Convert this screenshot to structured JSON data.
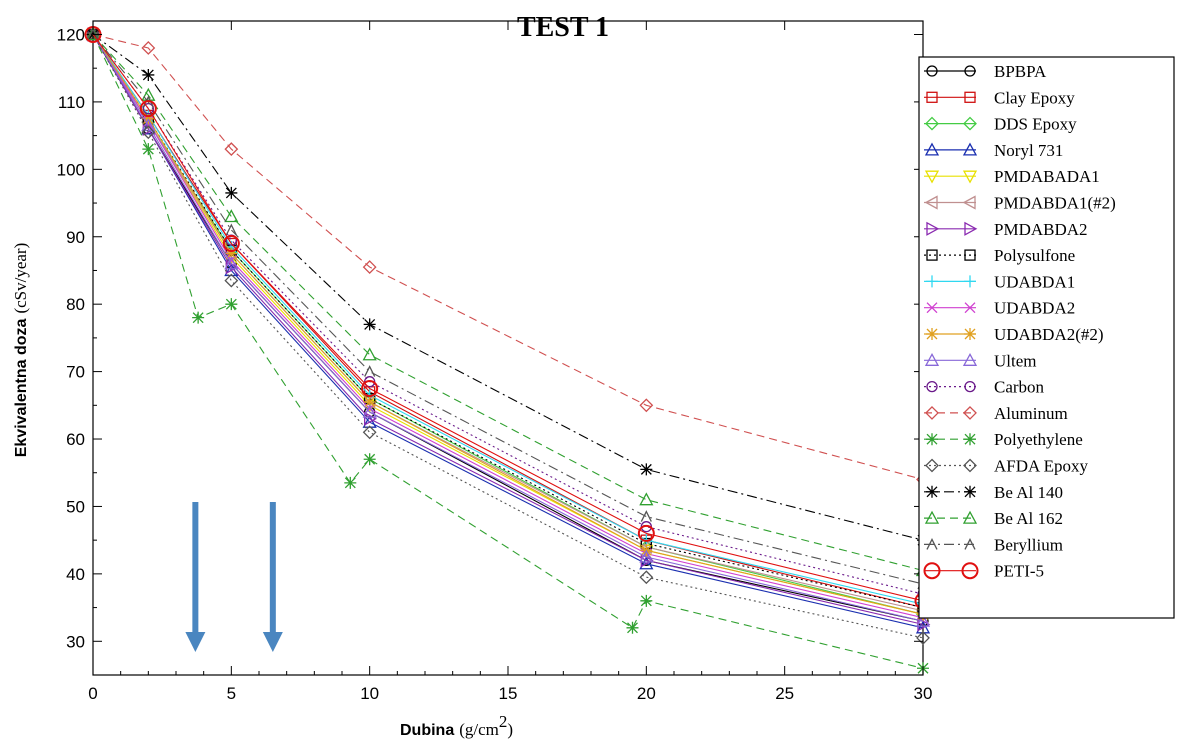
{
  "chart_data": {
    "type": "line",
    "title": "TEST 1",
    "xlabel": "Dubina",
    "xlabel_unit": "(g/cm",
    "xlabel_unit_sup": "2",
    "xlabel_unit_end": ")",
    "ylabel": "Ekvivalentna doza",
    "ylabel_unit": "(cSv/year)",
    "xlim": [
      0,
      30
    ],
    "ylim": [
      25,
      122
    ],
    "xticks": [
      "0",
      "5",
      "10",
      "15",
      "20",
      "25",
      "30"
    ],
    "yticks": [
      "30",
      "40",
      "50",
      "60",
      "70",
      "80",
      "90",
      "100",
      "110",
      "120"
    ],
    "grid": false,
    "legend_position": "right",
    "annotations": [
      {
        "type": "down-arrow",
        "x": 3.7,
        "color": "#4a86c0"
      },
      {
        "type": "down-arrow",
        "x": 6.5,
        "color": "#4a86c0"
      }
    ],
    "series": [
      {
        "name": "BPBPA",
        "color": "#000000",
        "marker": "circle",
        "dash": "solid",
        "x": [
          0,
          2,
          5,
          10,
          20,
          30
        ],
        "y": [
          120,
          106,
          86,
          64,
          42,
          33
        ]
      },
      {
        "name": "Clay Epoxy",
        "color": "#d01010",
        "marker": "square",
        "dash": "solid",
        "x": [
          0,
          2,
          5,
          10,
          20,
          30
        ],
        "y": [
          120,
          108,
          89,
          67,
          45,
          35
        ]
      },
      {
        "name": "DDS Epoxy",
        "color": "#44cc44",
        "marker": "diamond",
        "dash": "solid",
        "x": [
          0,
          2,
          5,
          10,
          20,
          30
        ],
        "y": [
          120,
          107,
          88,
          66,
          44,
          34
        ]
      },
      {
        "name": "Noryl 731",
        "color": "#1a2fb0",
        "marker": "triangle-up",
        "dash": "solid",
        "x": [
          0,
          2,
          5,
          10,
          20,
          30
        ],
        "y": [
          120,
          106,
          85,
          62.5,
          41.5,
          32
        ]
      },
      {
        "name": "PMDABADA1",
        "color": "#e8e000",
        "marker": "triangle-down",
        "dash": "solid",
        "x": [
          0,
          2,
          5,
          10,
          20,
          30
        ],
        "y": [
          120,
          107,
          87,
          65,
          43.5,
          34
        ]
      },
      {
        "name": "PMDABDA1(#2)",
        "color": "#c09090",
        "marker": "triangle-left",
        "dash": "solid",
        "x": [
          0,
          2,
          5,
          10,
          20,
          30
        ],
        "y": [
          120,
          107,
          87.5,
          65.5,
          44,
          34.5
        ]
      },
      {
        "name": "PMDABDA2",
        "color": "#8a2ab0",
        "marker": "triangle-right",
        "dash": "solid",
        "x": [
          0,
          2,
          5,
          10,
          20,
          30
        ],
        "y": [
          120,
          106,
          85.5,
          63,
          42,
          32.5
        ]
      },
      {
        "name": "Polysulfone",
        "color": "#000000",
        "marker": "square",
        "dash": "dotted",
        "x": [
          0,
          2,
          5,
          10,
          20,
          30
        ],
        "y": [
          120,
          107.5,
          88,
          66,
          44.5,
          35
        ]
      },
      {
        "name": "UDABDA1",
        "color": "#30d8f0",
        "marker": "plus",
        "dash": "solid",
        "x": [
          0,
          2,
          5,
          10,
          20,
          30
        ],
        "y": [
          120,
          108,
          88.5,
          66.5,
          45,
          35.5
        ]
      },
      {
        "name": "UDABDA2",
        "color": "#d040d0",
        "marker": "x",
        "dash": "solid",
        "x": [
          0,
          2,
          5,
          10,
          20,
          30
        ],
        "y": [
          120,
          107,
          86.5,
          64.5,
          43,
          33.5
        ]
      },
      {
        "name": "UDABDA2(#2)",
        "color": "#e0a020",
        "marker": "star",
        "dash": "solid",
        "x": [
          0,
          2,
          5,
          10,
          20,
          30
        ],
        "y": [
          120,
          107.5,
          87.5,
          65.5,
          43.5,
          34
        ]
      },
      {
        "name": "Ultem",
        "color": "#8868d8",
        "marker": "triangle-up",
        "dash": "solid",
        "x": [
          0,
          2,
          5,
          10,
          20,
          30
        ],
        "y": [
          120,
          106.5,
          86,
          64,
          42.5,
          33
        ]
      },
      {
        "name": "Carbon",
        "color": "#6a1a8a",
        "marker": "circle",
        "dash": "dotted",
        "x": [
          0,
          2,
          5,
          10,
          20,
          30
        ],
        "y": [
          120,
          109,
          89.5,
          68.5,
          47,
          37
        ]
      },
      {
        "name": "Aluminum",
        "color": "#d05050",
        "marker": "diamond",
        "dash": "dashed",
        "x": [
          0,
          2,
          5,
          10,
          20,
          30
        ],
        "y": [
          120,
          118,
          103,
          85.5,
          65,
          54
        ]
      },
      {
        "name": "Polyethylene",
        "color": "#30a030",
        "marker": "star",
        "dash": "dashed",
        "x": [
          0,
          2,
          3.8,
          5,
          9.3,
          10,
          19.5,
          20,
          30
        ],
        "y": [
          120,
          103,
          78,
          80,
          53.5,
          57,
          32,
          36,
          26
        ]
      },
      {
        "name": "AFDA Epoxy",
        "color": "#555555",
        "marker": "diamond",
        "dash": "dotted",
        "x": [
          0,
          2,
          5,
          10,
          20,
          30
        ],
        "y": [
          120,
          105.5,
          83.5,
          61,
          39.5,
          30.5
        ]
      },
      {
        "name": "Be Al 140",
        "color": "#000000",
        "marker": "star",
        "dash": "dashdot",
        "x": [
          0,
          2,
          5,
          10,
          20,
          30
        ],
        "y": [
          120,
          114,
          96.5,
          77,
          55.5,
          45
        ]
      },
      {
        "name": "Be Al 162",
        "color": "#30a030",
        "marker": "triangle-up",
        "dash": "dashed",
        "x": [
          0,
          2,
          5,
          10,
          20,
          30
        ],
        "y": [
          120,
          111,
          93,
          72.5,
          51,
          40.5
        ]
      },
      {
        "name": "Beryllium",
        "color": "#555555",
        "marker": "caret",
        "dash": "dashdot",
        "x": [
          0,
          2,
          5,
          10,
          20,
          30
        ],
        "y": [
          120,
          110,
          91,
          70,
          48.5,
          38.5
        ]
      },
      {
        "name": "PETI-5",
        "color": "#e01010",
        "marker": "circle-large",
        "dash": "solid",
        "x": [
          0,
          2,
          5,
          10,
          20,
          30
        ],
        "y": [
          120,
          109,
          89,
          67.5,
          46,
          36
        ]
      }
    ]
  }
}
